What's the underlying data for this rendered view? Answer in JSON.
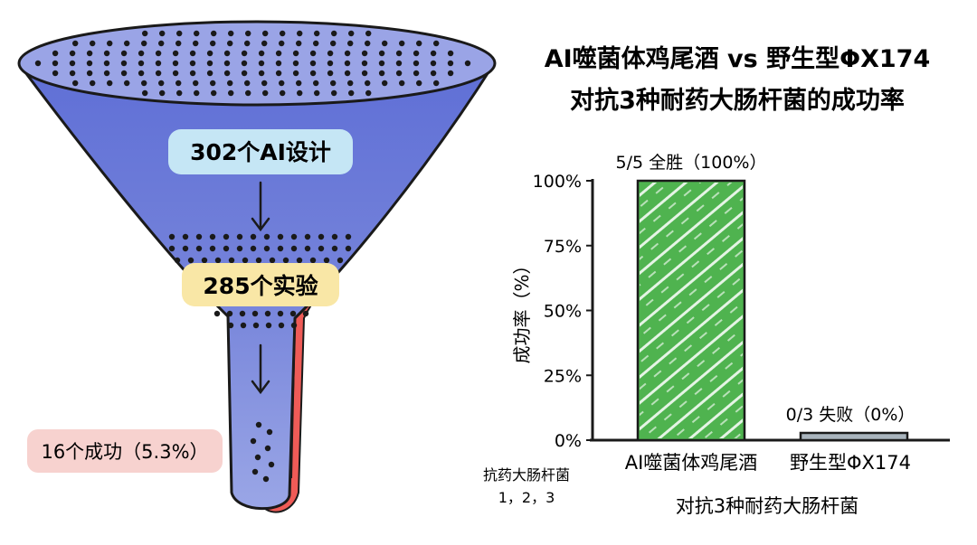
{
  "funnel": {
    "stage1_label": "302个AI设计",
    "stage2_label": "285个实验",
    "stage3_label": "16个成功（5.3%）",
    "colors": {
      "body": "#6f7ed9",
      "rim": "#9aa4e6",
      "shadow": "#ef5b57",
      "label1_bg": "#c5e6f5",
      "label2_bg": "#f9e7a6",
      "label3_bg": "#f7d2cf"
    }
  },
  "chart_data": {
    "type": "bar",
    "title_line1": "AI噬菌体鸡尾酒 vs 野生型ΦX174",
    "title_line2": "对抗3种耐药大肠杆菌的成功率",
    "ylabel": "成功率（%）",
    "xlabel": "对抗3种耐药大肠杆菌",
    "x_note_line1": "抗药大肠杆菌",
    "x_note_line2": "1，2，3",
    "ylim": [
      0,
      100
    ],
    "yticks": [
      0,
      25,
      50,
      75,
      100
    ],
    "ytick_labels": [
      "0%",
      "25%",
      "50%",
      "75%",
      "100%"
    ],
    "categories": [
      "AI噬菌体鸡尾酒",
      "野生型ΦX174"
    ],
    "values": [
      100,
      0
    ],
    "bar_labels": [
      "5/5 全胜（100%）",
      "0/3 失败（0%）"
    ],
    "bar_colors": [
      "#4fb34f",
      "#a9b4bd"
    ],
    "grid": false
  }
}
